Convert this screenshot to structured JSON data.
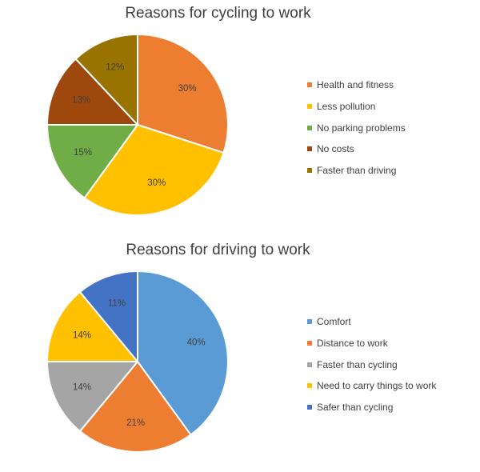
{
  "chart_data": [
    {
      "type": "pie",
      "title": "Reasons for cycling to work",
      "legend_position": "right",
      "categories": [
        "Health and fitness",
        "Less pollution",
        "No parking problems",
        "No costs",
        "Faster than driving"
      ],
      "values": [
        30,
        30,
        15,
        13,
        12
      ],
      "labels": [
        "30%",
        "30%",
        "15%",
        "13%",
        "12%"
      ],
      "colors": [
        "#ed7d31",
        "#ffc000",
        "#70ad47",
        "#9e480e",
        "#997300"
      ]
    },
    {
      "type": "pie",
      "title": "Reasons for driving to work",
      "legend_position": "right",
      "categories": [
        "Comfort",
        "Distance to work",
        "Faster than cycling",
        "Need to carry things to work",
        "Safer than cycling"
      ],
      "values": [
        40,
        21,
        14,
        14,
        11
      ],
      "labels": [
        "40%",
        "21%",
        "14%",
        "14%",
        "11%"
      ],
      "colors": [
        "#5b9bd5",
        "#ed7d31",
        "#a5a5a5",
        "#ffc000",
        "#4472c4"
      ]
    }
  ]
}
